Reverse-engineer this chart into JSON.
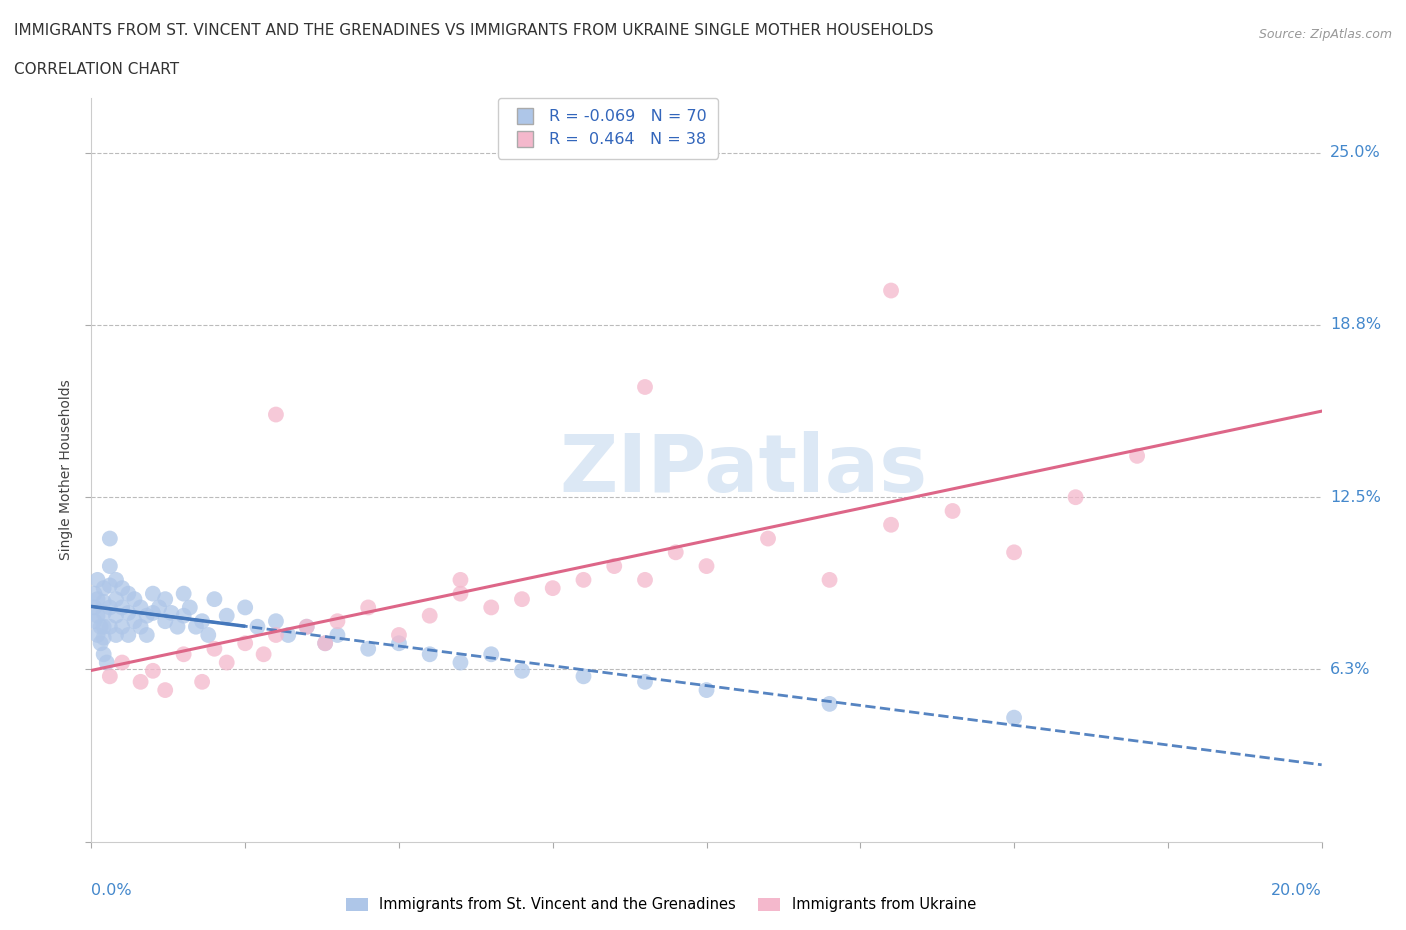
{
  "title_line1": "IMMIGRANTS FROM ST. VINCENT AND THE GRENADINES VS IMMIGRANTS FROM UKRAINE SINGLE MOTHER HOUSEHOLDS",
  "title_line2": "CORRELATION CHART",
  "source": "Source: ZipAtlas.com",
  "ylabel": "Single Mother Households",
  "yticks": [
    0.0,
    0.0625,
    0.125,
    0.1875,
    0.25
  ],
  "ytick_labels": [
    "",
    "6.3%",
    "12.5%",
    "18.8%",
    "25.0%"
  ],
  "xlim": [
    0.0,
    0.2
  ],
  "ylim": [
    0.0,
    0.27
  ],
  "watermark": "ZIPatlas",
  "series1_color": "#aec6e8",
  "series1_edge": "none",
  "series2_color": "#f4b8cc",
  "series2_edge": "none",
  "trend1_color": "#4477bb",
  "trend2_color": "#dd6688",
  "r1": -0.069,
  "n1": 70,
  "r2": 0.464,
  "n2": 38,
  "legend_label1": "Immigrants from St. Vincent and the Grenadines",
  "legend_label2": "Immigrants from Ukraine",
  "sv_x": [
    0.0005,
    0.0005,
    0.0005,
    0.001,
    0.001,
    0.001,
    0.001,
    0.0015,
    0.0015,
    0.002,
    0.002,
    0.002,
    0.002,
    0.002,
    0.002,
    0.0025,
    0.003,
    0.003,
    0.003,
    0.003,
    0.003,
    0.004,
    0.004,
    0.004,
    0.004,
    0.005,
    0.005,
    0.005,
    0.006,
    0.006,
    0.006,
    0.007,
    0.007,
    0.008,
    0.008,
    0.009,
    0.009,
    0.01,
    0.01,
    0.011,
    0.012,
    0.012,
    0.013,
    0.014,
    0.015,
    0.015,
    0.016,
    0.017,
    0.018,
    0.019,
    0.02,
    0.022,
    0.025,
    0.027,
    0.03,
    0.032,
    0.035,
    0.038,
    0.04,
    0.045,
    0.05,
    0.055,
    0.06,
    0.065,
    0.07,
    0.08,
    0.09,
    0.1,
    0.12,
    0.15
  ],
  "sv_y": [
    0.09,
    0.085,
    0.08,
    0.095,
    0.088,
    0.082,
    0.075,
    0.078,
    0.072,
    0.092,
    0.087,
    0.083,
    0.078,
    0.074,
    0.068,
    0.065,
    0.11,
    0.1,
    0.093,
    0.085,
    0.078,
    0.095,
    0.088,
    0.082,
    0.075,
    0.092,
    0.085,
    0.078,
    0.09,
    0.083,
    0.075,
    0.088,
    0.08,
    0.085,
    0.078,
    0.082,
    0.075,
    0.09,
    0.083,
    0.085,
    0.088,
    0.08,
    0.083,
    0.078,
    0.09,
    0.082,
    0.085,
    0.078,
    0.08,
    0.075,
    0.088,
    0.082,
    0.085,
    0.078,
    0.08,
    0.075,
    0.078,
    0.072,
    0.075,
    0.07,
    0.072,
    0.068,
    0.065,
    0.068,
    0.062,
    0.06,
    0.058,
    0.055,
    0.05,
    0.045
  ],
  "uk_x": [
    0.003,
    0.005,
    0.008,
    0.01,
    0.012,
    0.015,
    0.018,
    0.02,
    0.022,
    0.025,
    0.028,
    0.03,
    0.035,
    0.038,
    0.04,
    0.045,
    0.05,
    0.055,
    0.06,
    0.065,
    0.07,
    0.075,
    0.08,
    0.085,
    0.09,
    0.095,
    0.1,
    0.11,
    0.12,
    0.13,
    0.14,
    0.15,
    0.16,
    0.17,
    0.03,
    0.06,
    0.09,
    0.13
  ],
  "uk_y": [
    0.06,
    0.065,
    0.058,
    0.062,
    0.055,
    0.068,
    0.058,
    0.07,
    0.065,
    0.072,
    0.068,
    0.075,
    0.078,
    0.072,
    0.08,
    0.085,
    0.075,
    0.082,
    0.09,
    0.085,
    0.088,
    0.092,
    0.095,
    0.1,
    0.095,
    0.105,
    0.1,
    0.11,
    0.095,
    0.115,
    0.12,
    0.105,
    0.125,
    0.14,
    0.155,
    0.095,
    0.165,
    0.2
  ]
}
